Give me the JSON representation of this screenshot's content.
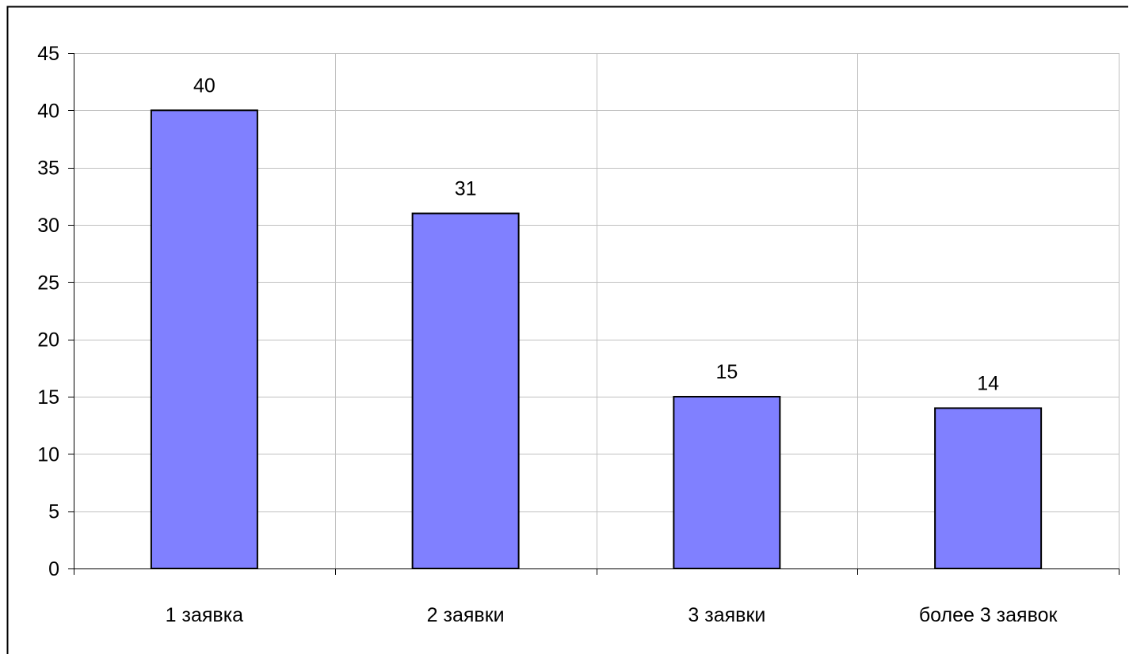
{
  "chart_data": {
    "type": "bar",
    "title": "",
    "xlabel": "",
    "ylabel": "",
    "categories": [
      "1 заявка",
      "2 заявки",
      "3 заявки",
      "более 3 заявок"
    ],
    "values": [
      40,
      31,
      15,
      14
    ],
    "data_labels": [
      "40",
      "31",
      "15",
      "14"
    ],
    "ylim": [
      0,
      45
    ],
    "yticks": [
      0,
      5,
      10,
      15,
      20,
      25,
      30,
      35,
      40,
      45
    ],
    "ytick_labels": [
      "0",
      "5",
      "10",
      "15",
      "20",
      "25",
      "30",
      "35",
      "40",
      "45"
    ],
    "grid": "horizontal and vertical",
    "legend": "none",
    "colors": {
      "bar_fill": "#8080ff",
      "bar_stroke": "#000000",
      "gridline": "#c0c0c0",
      "axis": "#000000",
      "frame": "#000000"
    }
  }
}
